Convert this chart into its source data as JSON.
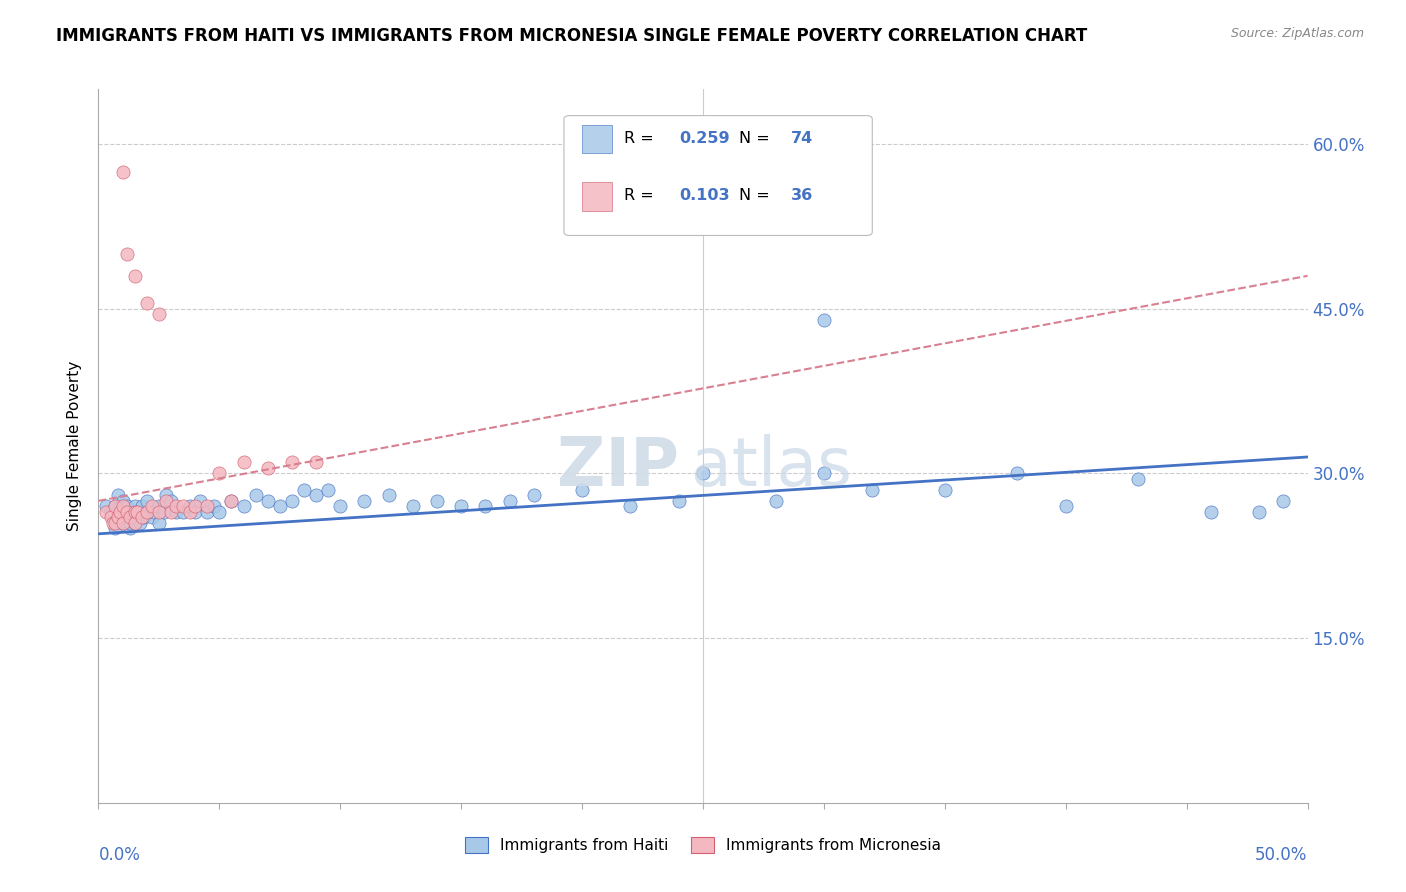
{
  "title": "IMMIGRANTS FROM HAITI VS IMMIGRANTS FROM MICRONESIA SINGLE FEMALE POVERTY CORRELATION CHART",
  "source": "Source: ZipAtlas.com",
  "ylabel": "Single Female Poverty",
  "ytick_values": [
    0.15,
    0.3,
    0.45,
    0.6
  ],
  "ytick_labels": [
    "15.0%",
    "30.0%",
    "45.0%",
    "60.0%"
  ],
  "xlim": [
    0.0,
    0.5
  ],
  "ylim": [
    0.0,
    0.65
  ],
  "xtick_values": [
    0.0,
    0.05,
    0.1,
    0.15,
    0.2,
    0.25,
    0.3,
    0.35,
    0.4,
    0.45,
    0.5
  ],
  "color_haiti": "#a8c8e8",
  "color_micronesia": "#f4b8c1",
  "color_line_haiti": "#4472c4",
  "color_line_micronesia": "#e8a0a8",
  "haiti_line_start_y": 0.245,
  "haiti_line_end_y": 0.315,
  "micronesia_line_start_y": 0.275,
  "micronesia_line_end_y": 0.48,
  "haiti_x": [
    0.003,
    0.005,
    0.006,
    0.007,
    0.007,
    0.008,
    0.008,
    0.009,
    0.009,
    0.01,
    0.01,
    0.01,
    0.012,
    0.012,
    0.013,
    0.013,
    0.014,
    0.015,
    0.015,
    0.015,
    0.016,
    0.017,
    0.018,
    0.019,
    0.02,
    0.02,
    0.022,
    0.023,
    0.025,
    0.025,
    0.027,
    0.028,
    0.03,
    0.032,
    0.035,
    0.038,
    0.04,
    0.042,
    0.045,
    0.048,
    0.05,
    0.055,
    0.06,
    0.065,
    0.07,
    0.075,
    0.08,
    0.085,
    0.09,
    0.095,
    0.1,
    0.11,
    0.12,
    0.13,
    0.14,
    0.15,
    0.16,
    0.17,
    0.18,
    0.2,
    0.22,
    0.24,
    0.25,
    0.28,
    0.3,
    0.32,
    0.35,
    0.38,
    0.4,
    0.43,
    0.46,
    0.48,
    0.49,
    0.3
  ],
  "haiti_y": [
    0.27,
    0.265,
    0.26,
    0.27,
    0.25,
    0.26,
    0.28,
    0.265,
    0.27,
    0.255,
    0.265,
    0.275,
    0.26,
    0.27,
    0.25,
    0.255,
    0.265,
    0.255,
    0.26,
    0.27,
    0.265,
    0.255,
    0.27,
    0.26,
    0.265,
    0.275,
    0.26,
    0.265,
    0.255,
    0.27,
    0.265,
    0.28,
    0.275,
    0.265,
    0.265,
    0.27,
    0.265,
    0.275,
    0.265,
    0.27,
    0.265,
    0.275,
    0.27,
    0.28,
    0.275,
    0.27,
    0.275,
    0.285,
    0.28,
    0.285,
    0.27,
    0.275,
    0.28,
    0.27,
    0.275,
    0.27,
    0.27,
    0.275,
    0.28,
    0.285,
    0.27,
    0.275,
    0.3,
    0.275,
    0.3,
    0.285,
    0.285,
    0.3,
    0.27,
    0.295,
    0.265,
    0.265,
    0.275,
    0.44
  ],
  "micronesia_x": [
    0.003,
    0.005,
    0.006,
    0.007,
    0.007,
    0.008,
    0.009,
    0.01,
    0.01,
    0.012,
    0.013,
    0.015,
    0.015,
    0.016,
    0.018,
    0.02,
    0.022,
    0.025,
    0.028,
    0.03,
    0.032,
    0.035,
    0.038,
    0.04,
    0.045,
    0.05,
    0.055,
    0.06,
    0.07,
    0.08,
    0.09,
    0.01,
    0.012,
    0.015,
    0.02,
    0.025
  ],
  "micronesia_y": [
    0.265,
    0.26,
    0.255,
    0.27,
    0.255,
    0.26,
    0.265,
    0.255,
    0.27,
    0.265,
    0.26,
    0.265,
    0.255,
    0.265,
    0.26,
    0.265,
    0.27,
    0.265,
    0.275,
    0.265,
    0.27,
    0.27,
    0.265,
    0.27,
    0.27,
    0.3,
    0.275,
    0.31,
    0.305,
    0.31,
    0.31,
    0.575,
    0.5,
    0.48,
    0.455,
    0.445
  ]
}
